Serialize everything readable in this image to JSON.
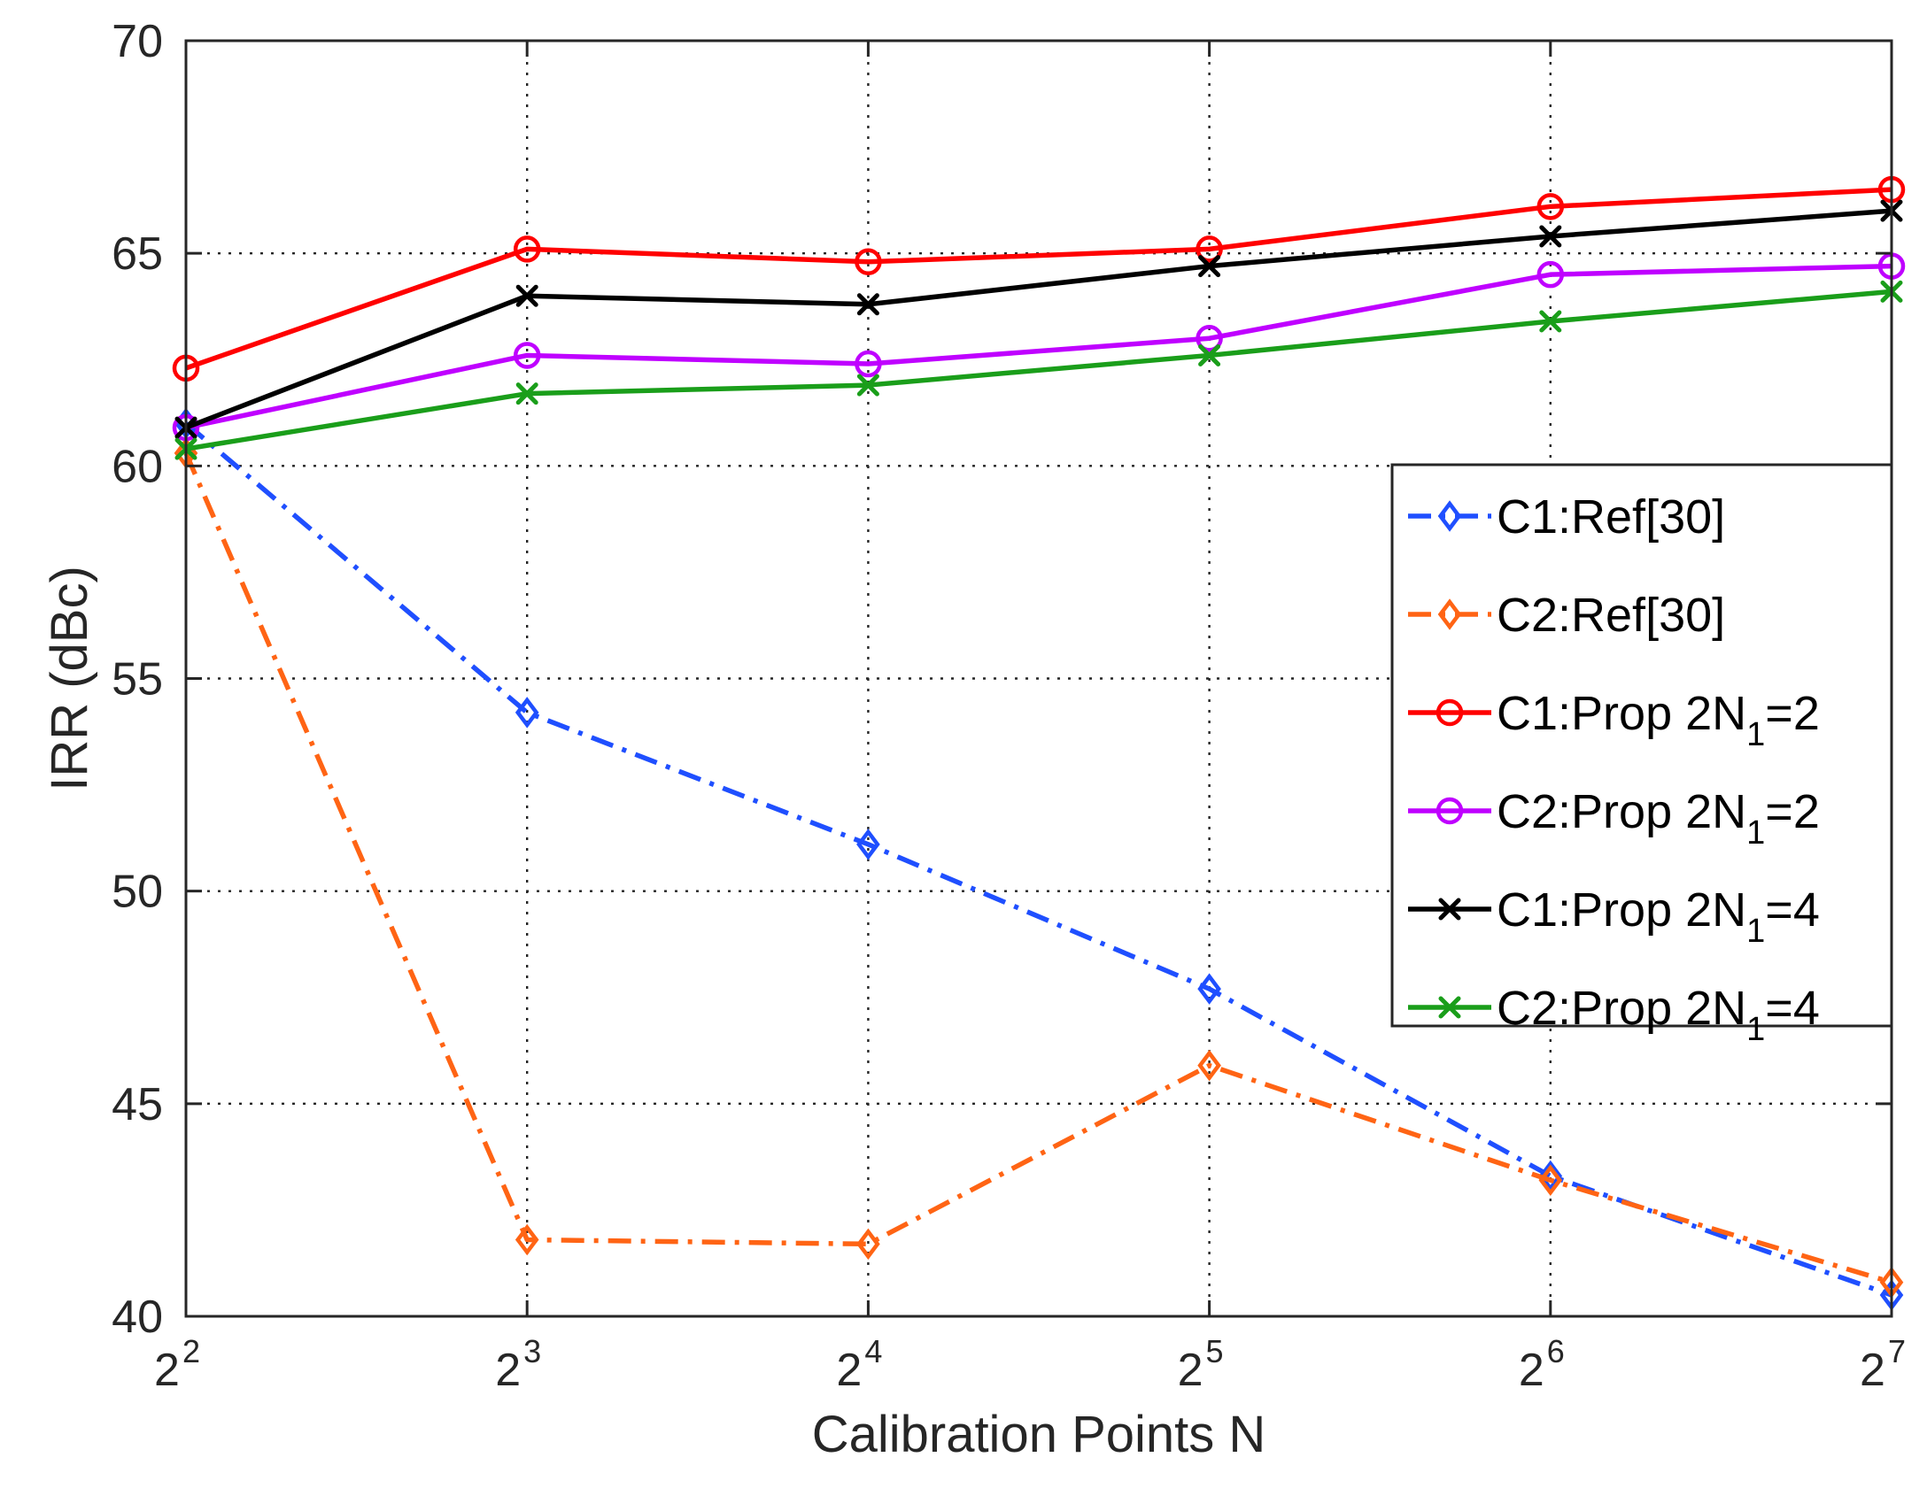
{
  "chart_data": {
    "type": "line",
    "title": "",
    "xlabel": "Calibration Points N",
    "ylabel": "IRR (dBc)",
    "x_exponents": [
      2,
      3,
      4,
      5,
      6,
      7
    ],
    "x_tick_labels": [
      {
        "base": "2",
        "exp": "2"
      },
      {
        "base": "2",
        "exp": "3"
      },
      {
        "base": "2",
        "exp": "4"
      },
      {
        "base": "2",
        "exp": "5"
      },
      {
        "base": "2",
        "exp": "6"
      },
      {
        "base": "2",
        "exp": "7"
      }
    ],
    "x_scale": "log2",
    "ylim": [
      40,
      70
    ],
    "y_ticks": [
      40,
      45,
      50,
      55,
      60,
      65,
      70
    ],
    "grid": true,
    "legend_position": "right",
    "series": [
      {
        "id": "c1-ref30",
        "label_main": "C1:Ref[30]",
        "label_sub": "",
        "label_tail": "",
        "color": "#1f4fff",
        "dash": "dash-dot",
        "marker": "diamond",
        "values": [
          61.0,
          54.2,
          51.1,
          47.7,
          43.3,
          40.5
        ]
      },
      {
        "id": "c2-ref30",
        "label_main": "C2:Ref[30]",
        "label_sub": "",
        "label_tail": "",
        "color": "#ff6414",
        "dash": "dash-dot",
        "marker": "diamond",
        "values": [
          60.3,
          41.8,
          41.7,
          45.9,
          43.2,
          40.8
        ]
      },
      {
        "id": "c1-prop-2n1-2",
        "label_main": "C1:Prop 2N",
        "label_sub": "1",
        "label_tail": "=2",
        "color": "#ff0000",
        "dash": "solid",
        "marker": "circle",
        "values": [
          62.3,
          65.1,
          64.8,
          65.1,
          66.1,
          66.5
        ]
      },
      {
        "id": "c2-prop-2n1-2",
        "label_main": "C2:Prop 2N",
        "label_sub": "1",
        "label_tail": "=2",
        "color": "#bf00ff",
        "dash": "solid",
        "marker": "circle",
        "values": [
          60.9,
          62.6,
          62.4,
          63.0,
          64.5,
          64.7
        ]
      },
      {
        "id": "c1-prop-2n1-4",
        "label_main": "C1:Prop 2N",
        "label_sub": "1",
        "label_tail": "=4",
        "color": "#000000",
        "dash": "solid",
        "marker": "x",
        "values": [
          60.9,
          64.0,
          63.8,
          64.7,
          65.4,
          66.0
        ]
      },
      {
        "id": "c2-prop-2n1-4",
        "label_main": "C2:Prop 2N",
        "label_sub": "1",
        "label_tail": "=4",
        "color": "#1a9e1a",
        "dash": "solid",
        "marker": "x",
        "values": [
          60.4,
          61.7,
          61.9,
          62.6,
          63.4,
          64.1
        ]
      }
    ]
  }
}
